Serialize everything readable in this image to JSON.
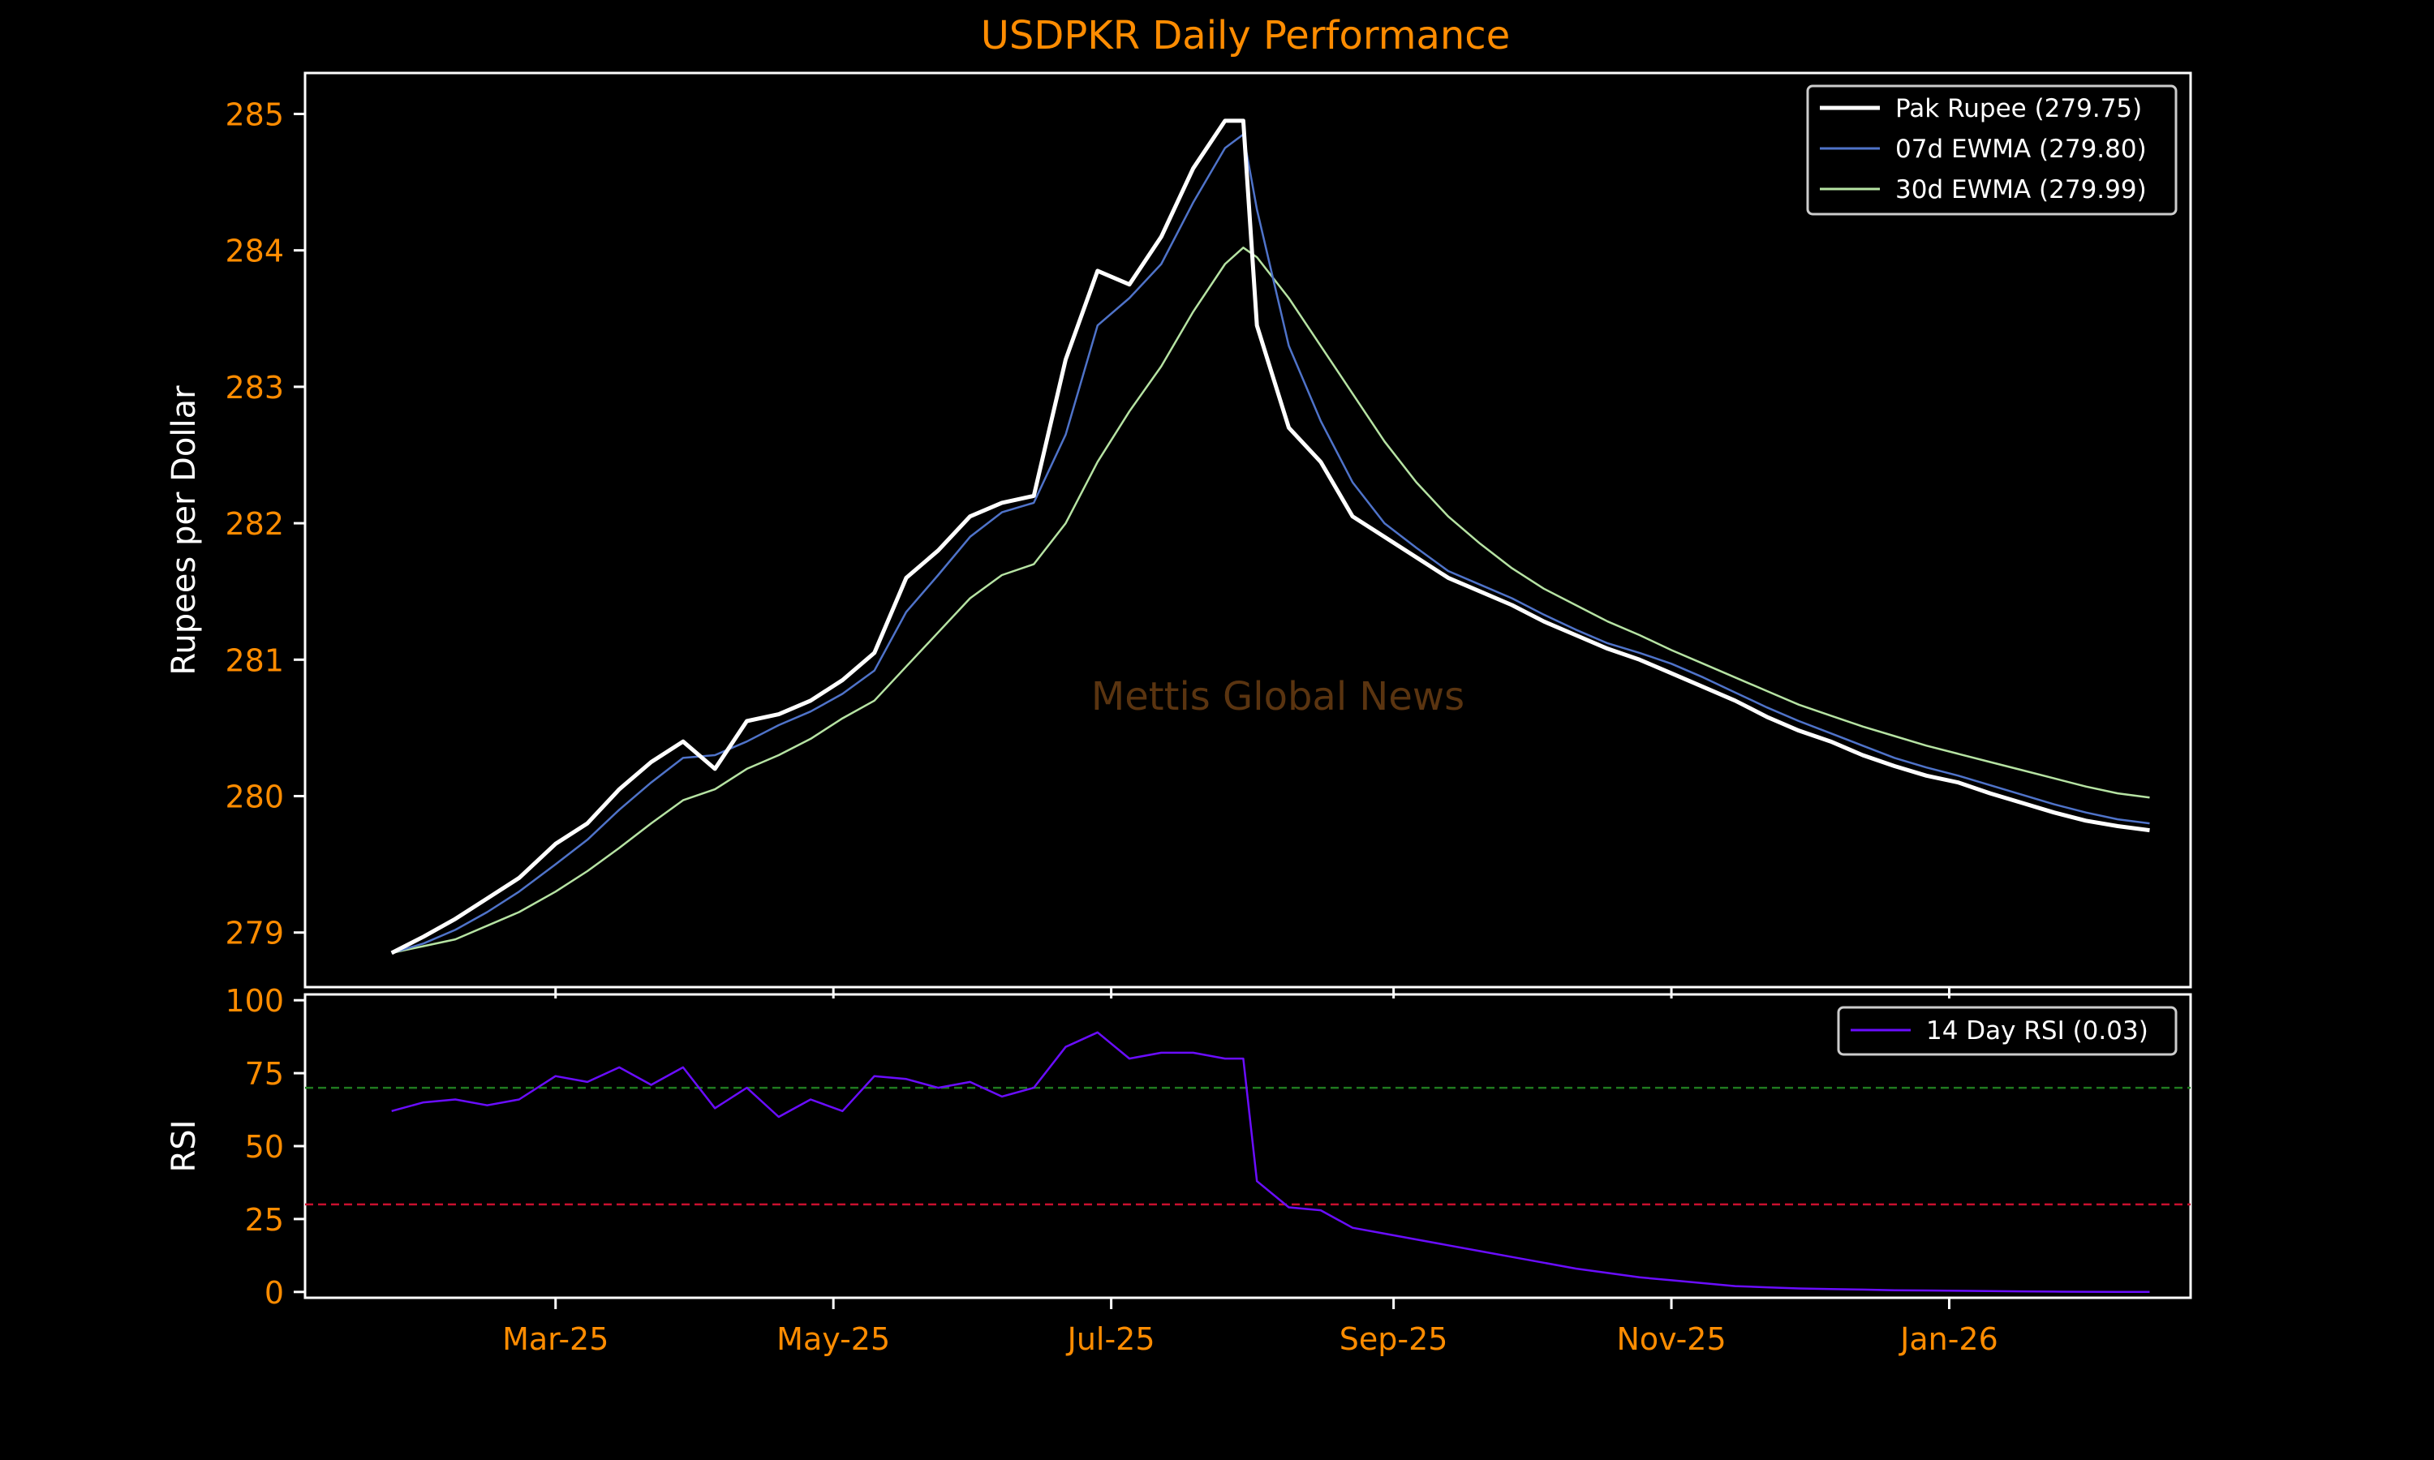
{
  "chart_data": [
    {
      "type": "line",
      "title": "USDPKR Daily Performance",
      "ylabel": "Rupees per Dollar",
      "xlabel": "",
      "ylim": [
        278.6,
        285.3
      ],
      "yticks": [
        279,
        280,
        281,
        282,
        283,
        284,
        285
      ],
      "xlim": [
        "2025-01-05",
        "2026-02-23"
      ],
      "xticks": [
        "2025-03-01",
        "2025-05-01",
        "2025-07-01",
        "2025-09-01",
        "2025-11-01",
        "2026-01-01"
      ],
      "xtick_labels": [
        "Mar-25",
        "May-25",
        "Jul-25",
        "Sep-25",
        "Nov-25",
        "Jan-26"
      ],
      "grid": false,
      "legend_position": "top-right",
      "annotation": "Mettis Global News",
      "series": [
        {
          "name": "Pak Rupee (279.75)",
          "color": "#ffffff",
          "x": [
            "2025-01-24",
            "2025-01-31",
            "2025-02-07",
            "2025-02-14",
            "2025-02-21",
            "2025-03-01",
            "2025-03-08",
            "2025-03-15",
            "2025-03-22",
            "2025-03-29",
            "2025-04-05",
            "2025-04-12",
            "2025-04-19",
            "2025-04-26",
            "2025-05-03",
            "2025-05-10",
            "2025-05-17",
            "2025-05-24",
            "2025-05-31",
            "2025-06-07",
            "2025-06-14",
            "2025-06-21",
            "2025-06-28",
            "2025-07-05",
            "2025-07-12",
            "2025-07-19",
            "2025-07-26",
            "2025-07-30",
            "2025-08-02",
            "2025-08-09",
            "2025-08-16",
            "2025-08-23",
            "2025-08-30",
            "2025-09-06",
            "2025-09-13",
            "2025-09-20",
            "2025-09-27",
            "2025-10-04",
            "2025-10-11",
            "2025-10-18",
            "2025-10-25",
            "2025-11-01",
            "2025-11-08",
            "2025-11-15",
            "2025-11-22",
            "2025-11-29",
            "2025-12-06",
            "2025-12-13",
            "2025-12-20",
            "2025-12-27",
            "2026-01-03",
            "2026-01-10",
            "2026-01-17",
            "2026-01-24",
            "2026-01-31",
            "2026-02-07",
            "2026-02-14"
          ],
          "y": [
            278.85,
            278.97,
            279.1,
            279.25,
            279.4,
            279.65,
            279.8,
            280.05,
            280.25,
            280.4,
            280.2,
            280.55,
            280.6,
            280.7,
            280.85,
            281.05,
            281.6,
            281.8,
            282.05,
            282.15,
            282.2,
            283.2,
            283.85,
            283.75,
            284.1,
            284.6,
            284.95,
            284.95,
            283.45,
            282.7,
            282.45,
            282.05,
            281.9,
            281.75,
            281.6,
            281.5,
            281.4,
            281.28,
            281.18,
            281.08,
            281.0,
            280.9,
            280.8,
            280.7,
            280.58,
            280.48,
            280.4,
            280.3,
            280.22,
            280.15,
            280.1,
            280.02,
            279.95,
            279.88,
            279.82,
            279.78,
            279.75
          ]
        },
        {
          "name": "07d EWMA (279.80)",
          "color": "#4f73c9",
          "x": [
            "2025-01-24",
            "2025-01-31",
            "2025-02-07",
            "2025-02-14",
            "2025-02-21",
            "2025-03-01",
            "2025-03-08",
            "2025-03-15",
            "2025-03-22",
            "2025-03-29",
            "2025-04-05",
            "2025-04-12",
            "2025-04-19",
            "2025-04-26",
            "2025-05-03",
            "2025-05-10",
            "2025-05-17",
            "2025-05-24",
            "2025-05-31",
            "2025-06-07",
            "2025-06-14",
            "2025-06-21",
            "2025-06-28",
            "2025-07-05",
            "2025-07-12",
            "2025-07-19",
            "2025-07-26",
            "2025-07-30",
            "2025-08-02",
            "2025-08-09",
            "2025-08-16",
            "2025-08-23",
            "2025-08-30",
            "2025-09-06",
            "2025-09-13",
            "2025-09-20",
            "2025-09-27",
            "2025-10-04",
            "2025-10-11",
            "2025-10-18",
            "2025-10-25",
            "2025-11-01",
            "2025-11-08",
            "2025-11-15",
            "2025-11-22",
            "2025-11-29",
            "2025-12-06",
            "2025-12-13",
            "2025-12-20",
            "2025-12-27",
            "2026-01-03",
            "2026-01-10",
            "2026-01-17",
            "2026-01-24",
            "2026-01-31",
            "2026-02-07",
            "2026-02-14"
          ],
          "y": [
            278.85,
            278.92,
            279.02,
            279.15,
            279.3,
            279.5,
            279.68,
            279.9,
            280.1,
            280.28,
            280.3,
            280.4,
            280.52,
            280.62,
            280.75,
            280.92,
            281.35,
            281.62,
            281.9,
            282.08,
            282.15,
            282.65,
            283.45,
            283.65,
            283.9,
            284.35,
            284.75,
            284.85,
            284.3,
            283.3,
            282.75,
            282.3,
            282.0,
            281.82,
            281.65,
            281.55,
            281.45,
            281.33,
            281.22,
            281.12,
            281.05,
            280.97,
            280.87,
            280.76,
            280.65,
            280.55,
            280.46,
            280.37,
            280.28,
            280.21,
            280.15,
            280.08,
            280.01,
            279.94,
            279.88,
            279.83,
            279.8
          ]
        },
        {
          "name": "30d EWMA (279.99)",
          "color": "#b6e3a3",
          "x": [
            "2025-01-24",
            "2025-01-31",
            "2025-02-07",
            "2025-02-14",
            "2025-02-21",
            "2025-03-01",
            "2025-03-08",
            "2025-03-15",
            "2025-03-22",
            "2025-03-29",
            "2025-04-05",
            "2025-04-12",
            "2025-04-19",
            "2025-04-26",
            "2025-05-03",
            "2025-05-10",
            "2025-05-17",
            "2025-05-24",
            "2025-05-31",
            "2025-06-07",
            "2025-06-14",
            "2025-06-21",
            "2025-06-28",
            "2025-07-05",
            "2025-07-12",
            "2025-07-19",
            "2025-07-26",
            "2025-07-30",
            "2025-08-02",
            "2025-08-09",
            "2025-08-16",
            "2025-08-23",
            "2025-08-30",
            "2025-09-06",
            "2025-09-13",
            "2025-09-20",
            "2025-09-27",
            "2025-10-04",
            "2025-10-11",
            "2025-10-18",
            "2025-10-25",
            "2025-11-01",
            "2025-11-08",
            "2025-11-15",
            "2025-11-22",
            "2025-11-29",
            "2025-12-06",
            "2025-12-13",
            "2025-12-20",
            "2025-12-27",
            "2026-01-03",
            "2026-01-10",
            "2026-01-17",
            "2026-01-24",
            "2026-01-31",
            "2026-02-07",
            "2026-02-14"
          ],
          "y": [
            278.85,
            278.9,
            278.95,
            279.05,
            279.15,
            279.3,
            279.45,
            279.62,
            279.8,
            279.97,
            280.05,
            280.2,
            280.3,
            280.42,
            280.57,
            280.7,
            280.95,
            281.2,
            281.45,
            281.62,
            281.7,
            282.0,
            282.45,
            282.82,
            283.15,
            283.55,
            283.9,
            284.02,
            283.95,
            283.65,
            283.3,
            282.95,
            282.6,
            282.3,
            282.05,
            281.85,
            281.67,
            281.52,
            281.4,
            281.28,
            281.18,
            281.07,
            280.97,
            280.87,
            280.77,
            280.67,
            280.59,
            280.51,
            280.44,
            280.37,
            280.31,
            280.25,
            280.19,
            280.13,
            280.07,
            280.02,
            279.99
          ]
        }
      ]
    },
    {
      "type": "line",
      "title": "",
      "ylabel": "RSI",
      "xlabel": "",
      "ylim": [
        -2,
        102
      ],
      "yticks": [
        0,
        25,
        50,
        75,
        100
      ],
      "xlim": [
        "2025-01-05",
        "2026-02-23"
      ],
      "xticks": [
        "2025-03-01",
        "2025-05-01",
        "2025-07-01",
        "2025-09-01",
        "2025-11-01",
        "2026-01-01"
      ],
      "xtick_labels": [
        "Mar-25",
        "May-25",
        "Jul-25",
        "Sep-25",
        "Nov-25",
        "Jan-26"
      ],
      "grid": false,
      "legend_position": "top-right",
      "reference_lines": [
        {
          "y": 70,
          "color": "#1f7a1f",
          "style": "dashed"
        },
        {
          "y": 30,
          "color": "#c8102e",
          "style": "dashed"
        }
      ],
      "series": [
        {
          "name": "14 Day RSI (0.03)",
          "color": "#6a0dff",
          "x": [
            "2025-01-24",
            "2025-01-31",
            "2025-02-07",
            "2025-02-14",
            "2025-02-21",
            "2025-03-01",
            "2025-03-08",
            "2025-03-15",
            "2025-03-22",
            "2025-03-29",
            "2025-04-05",
            "2025-04-12",
            "2025-04-19",
            "2025-04-26",
            "2025-05-03",
            "2025-05-10",
            "2025-05-17",
            "2025-05-24",
            "2025-05-31",
            "2025-06-07",
            "2025-06-14",
            "2025-06-21",
            "2025-06-28",
            "2025-07-05",
            "2025-07-12",
            "2025-07-19",
            "2025-07-26",
            "2025-07-30",
            "2025-08-02",
            "2025-08-09",
            "2025-08-16",
            "2025-08-23",
            "2025-08-30",
            "2025-09-06",
            "2025-09-13",
            "2025-09-20",
            "2025-09-27",
            "2025-10-04",
            "2025-10-11",
            "2025-10-18",
            "2025-10-25",
            "2025-11-01",
            "2025-11-08",
            "2025-11-15",
            "2025-11-22",
            "2025-11-29",
            "2025-12-06",
            "2025-12-13",
            "2025-12-20",
            "2025-12-27",
            "2026-01-03",
            "2026-01-10",
            "2026-01-17",
            "2026-01-24",
            "2026-01-31",
            "2026-02-07",
            "2026-02-14"
          ],
          "y": [
            62,
            65,
            66,
            64,
            66,
            74,
            72,
            77,
            71,
            77,
            63,
            70,
            60,
            66,
            62,
            74,
            73,
            70,
            72,
            67,
            70,
            84,
            89,
            80,
            82,
            82,
            80,
            80,
            38,
            29,
            28,
            22,
            20,
            18,
            16,
            14,
            12,
            10,
            8,
            6.5,
            5,
            4,
            3,
            2,
            1.6,
            1.2,
            1,
            0.8,
            0.6,
            0.5,
            0.4,
            0.3,
            0.2,
            0.12,
            0.07,
            0.04,
            0.03
          ]
        }
      ]
    }
  ]
}
